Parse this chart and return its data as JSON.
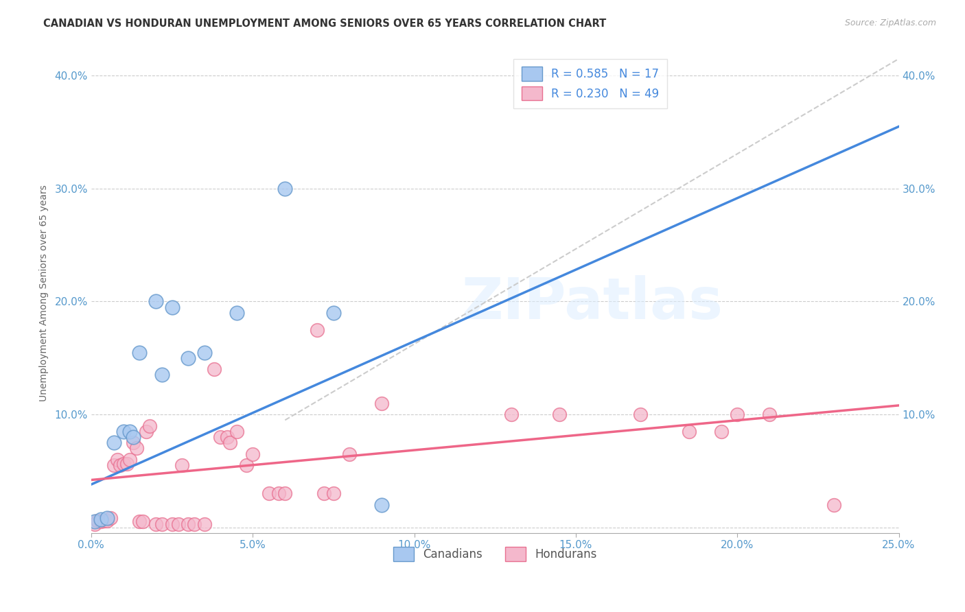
{
  "title": "CANADIAN VS HONDURAN UNEMPLOYMENT AMONG SENIORS OVER 65 YEARS CORRELATION CHART",
  "source": "Source: ZipAtlas.com",
  "ylabel": "Unemployment Among Seniors over 65 years",
  "xlim": [
    0.0,
    0.25
  ],
  "ylim": [
    -0.005,
    0.42
  ],
  "xtick_labels": [
    "0.0%",
    "",
    "5.0%",
    "",
    "10.0%",
    "",
    "15.0%",
    "",
    "20.0%",
    "",
    "25.0%"
  ],
  "xtick_vals": [
    0.0,
    0.025,
    0.05,
    0.075,
    0.1,
    0.125,
    0.15,
    0.175,
    0.2,
    0.225,
    0.25
  ],
  "ytick_labels_left": [
    "",
    "10.0%",
    "20.0%",
    "30.0%",
    "40.0%"
  ],
  "ytick_vals": [
    0.0,
    0.1,
    0.2,
    0.3,
    0.4
  ],
  "canadian_color": "#a8c8f0",
  "honduran_color": "#f4b8cc",
  "canadian_edge_color": "#6699cc",
  "honduran_edge_color": "#e87090",
  "canadian_line_color": "#4488dd",
  "honduran_line_color": "#ee6688",
  "diagonal_color": "#cccccc",
  "watermark": "ZIPatlas",
  "legend_r_canadian": "R = 0.585",
  "legend_n_canadian": "N = 17",
  "legend_r_honduran": "R = 0.230",
  "legend_n_honduran": "N = 49",
  "canadians_label": "Canadians",
  "hondurans_label": "Hondurans",
  "legend_text_color": "#4488dd",
  "canadian_points": [
    [
      0.001,
      0.005
    ],
    [
      0.003,
      0.007
    ],
    [
      0.005,
      0.008
    ],
    [
      0.007,
      0.075
    ],
    [
      0.01,
      0.085
    ],
    [
      0.012,
      0.085
    ],
    [
      0.013,
      0.08
    ],
    [
      0.015,
      0.155
    ],
    [
      0.02,
      0.2
    ],
    [
      0.022,
      0.135
    ],
    [
      0.025,
      0.195
    ],
    [
      0.03,
      0.15
    ],
    [
      0.035,
      0.155
    ],
    [
      0.045,
      0.19
    ],
    [
      0.06,
      0.3
    ],
    [
      0.075,
      0.19
    ],
    [
      0.09,
      0.02
    ]
  ],
  "honduran_points": [
    [
      0.001,
      0.003
    ],
    [
      0.002,
      0.006
    ],
    [
      0.003,
      0.005
    ],
    [
      0.004,
      0.006
    ],
    [
      0.005,
      0.006
    ],
    [
      0.006,
      0.008
    ],
    [
      0.007,
      0.055
    ],
    [
      0.008,
      0.06
    ],
    [
      0.009,
      0.055
    ],
    [
      0.01,
      0.056
    ],
    [
      0.011,
      0.056
    ],
    [
      0.012,
      0.06
    ],
    [
      0.013,
      0.075
    ],
    [
      0.014,
      0.07
    ],
    [
      0.015,
      0.005
    ],
    [
      0.016,
      0.005
    ],
    [
      0.017,
      0.085
    ],
    [
      0.018,
      0.09
    ],
    [
      0.02,
      0.003
    ],
    [
      0.022,
      0.003
    ],
    [
      0.025,
      0.003
    ],
    [
      0.027,
      0.003
    ],
    [
      0.028,
      0.055
    ],
    [
      0.03,
      0.003
    ],
    [
      0.032,
      0.003
    ],
    [
      0.035,
      0.003
    ],
    [
      0.038,
      0.14
    ],
    [
      0.04,
      0.08
    ],
    [
      0.042,
      0.08
    ],
    [
      0.043,
      0.075
    ],
    [
      0.045,
      0.085
    ],
    [
      0.048,
      0.055
    ],
    [
      0.05,
      0.065
    ],
    [
      0.055,
      0.03
    ],
    [
      0.058,
      0.03
    ],
    [
      0.06,
      0.03
    ],
    [
      0.07,
      0.175
    ],
    [
      0.072,
      0.03
    ],
    [
      0.075,
      0.03
    ],
    [
      0.08,
      0.065
    ],
    [
      0.09,
      0.11
    ],
    [
      0.13,
      0.1
    ],
    [
      0.145,
      0.1
    ],
    [
      0.17,
      0.1
    ],
    [
      0.185,
      0.085
    ],
    [
      0.195,
      0.085
    ],
    [
      0.2,
      0.1
    ],
    [
      0.21,
      0.1
    ],
    [
      0.23,
      0.02
    ]
  ],
  "can_line_x": [
    0.0,
    0.25
  ],
  "can_line_y": [
    0.038,
    0.355
  ],
  "hon_line_x": [
    0.0,
    0.25
  ],
  "hon_line_y": [
    0.042,
    0.108
  ],
  "diag_line_x": [
    0.06,
    0.25
  ],
  "diag_line_y": [
    0.095,
    0.415
  ]
}
